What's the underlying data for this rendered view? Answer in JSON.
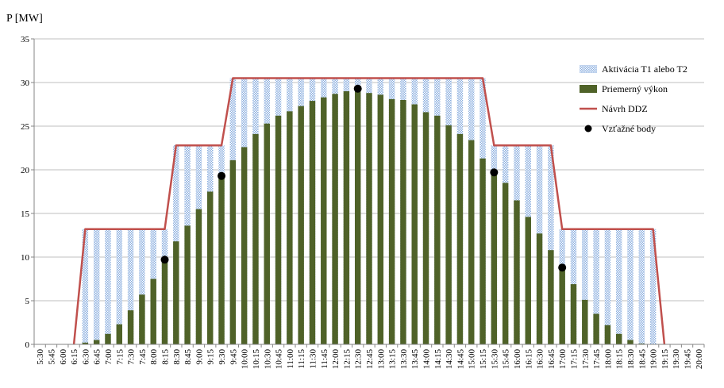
{
  "chart_data": {
    "type": "bar",
    "ylabel": "P [MW]",
    "ylim": [
      0,
      35
    ],
    "yticks": [
      0,
      5,
      10,
      15,
      20,
      25,
      30,
      35
    ],
    "grid": "horizontal",
    "legend_position": "right",
    "categories": [
      "5:30",
      "5:45",
      "6:00",
      "6:15",
      "6:30",
      "6:45",
      "7:00",
      "7:15",
      "7:30",
      "7:45",
      "8:00",
      "8:15",
      "8:30",
      "8:45",
      "9:00",
      "9:15",
      "9:30",
      "9:45",
      "10:00",
      "10:15",
      "10:30",
      "10:45",
      "11:00",
      "11:15",
      "11:30",
      "11:45",
      "12:00",
      "12:15",
      "12:30",
      "12:45",
      "13:00",
      "13:15",
      "13:30",
      "13:45",
      "14:00",
      "14:15",
      "14:30",
      "14:45",
      "15:00",
      "15:15",
      "15:30",
      "15:45",
      "16:00",
      "16:15",
      "16:30",
      "16:45",
      "17:00",
      "17:15",
      "17:30",
      "17:45",
      "18:00",
      "18:15",
      "18:30",
      "18:45",
      "19:00",
      "19:15",
      "19:30",
      "19:45",
      "20:00"
    ],
    "series": [
      {
        "name": "Aktivácia T1 alebo T2",
        "kind": "bar-top",
        "color": "#bcd4f0",
        "values": [
          0,
          0,
          0,
          0,
          13.2,
          13.2,
          13.2,
          13.2,
          13.2,
          13.2,
          13.2,
          13.2,
          22.8,
          22.8,
          22.8,
          22.8,
          22.8,
          30.5,
          30.5,
          30.5,
          30.5,
          30.5,
          30.5,
          30.5,
          30.5,
          30.5,
          30.5,
          30.5,
          30.5,
          30.5,
          30.5,
          30.5,
          30.5,
          30.5,
          30.5,
          30.5,
          30.5,
          30.5,
          30.5,
          30.5,
          22.8,
          22.8,
          22.8,
          22.8,
          22.8,
          22.8,
          13.2,
          13.2,
          13.2,
          13.2,
          13.2,
          13.2,
          13.2,
          13.2,
          13.2,
          0,
          0,
          0,
          0
        ]
      },
      {
        "name": "Priemerný výkon",
        "kind": "bar",
        "color": "#4f6228",
        "values": [
          0,
          0,
          0,
          0,
          0.2,
          0.5,
          1.2,
          2.3,
          3.9,
          5.7,
          7.5,
          9.5,
          11.8,
          13.6,
          15.5,
          17.5,
          19.3,
          21.1,
          22.6,
          24.1,
          25.3,
          26.2,
          26.7,
          27.3,
          27.9,
          28.3,
          28.7,
          29.0,
          29.2,
          28.8,
          28.6,
          28.1,
          28.0,
          27.5,
          26.6,
          26.2,
          25.1,
          24.1,
          23.4,
          21.3,
          20.0,
          18.5,
          16.5,
          14.6,
          12.7,
          10.8,
          8.7,
          6.9,
          5.1,
          3.5,
          2.2,
          1.2,
          0.5,
          0.1,
          0,
          0,
          0,
          0,
          0
        ]
      },
      {
        "name": "Návrh DDZ",
        "kind": "line",
        "color": "#c0504d",
        "points": [
          [
            "6:15",
            0
          ],
          [
            "6:30",
            13.2
          ],
          [
            "8:15",
            13.2
          ],
          [
            "8:30",
            22.8
          ],
          [
            "9:30",
            22.8
          ],
          [
            "9:45",
            30.5
          ],
          [
            "15:15",
            30.5
          ],
          [
            "15:30",
            22.8
          ],
          [
            "16:45",
            22.8
          ],
          [
            "17:00",
            13.2
          ],
          [
            "19:00",
            13.2
          ],
          [
            "19:15",
            0
          ]
        ]
      },
      {
        "name": "Vzťažné body",
        "kind": "scatter",
        "color": "#000000",
        "points": [
          [
            "8:15",
            9.7
          ],
          [
            "9:30",
            19.3
          ],
          [
            "12:30",
            29.3
          ],
          [
            "15:30",
            19.7
          ],
          [
            "17:00",
            8.8
          ]
        ]
      }
    ]
  }
}
